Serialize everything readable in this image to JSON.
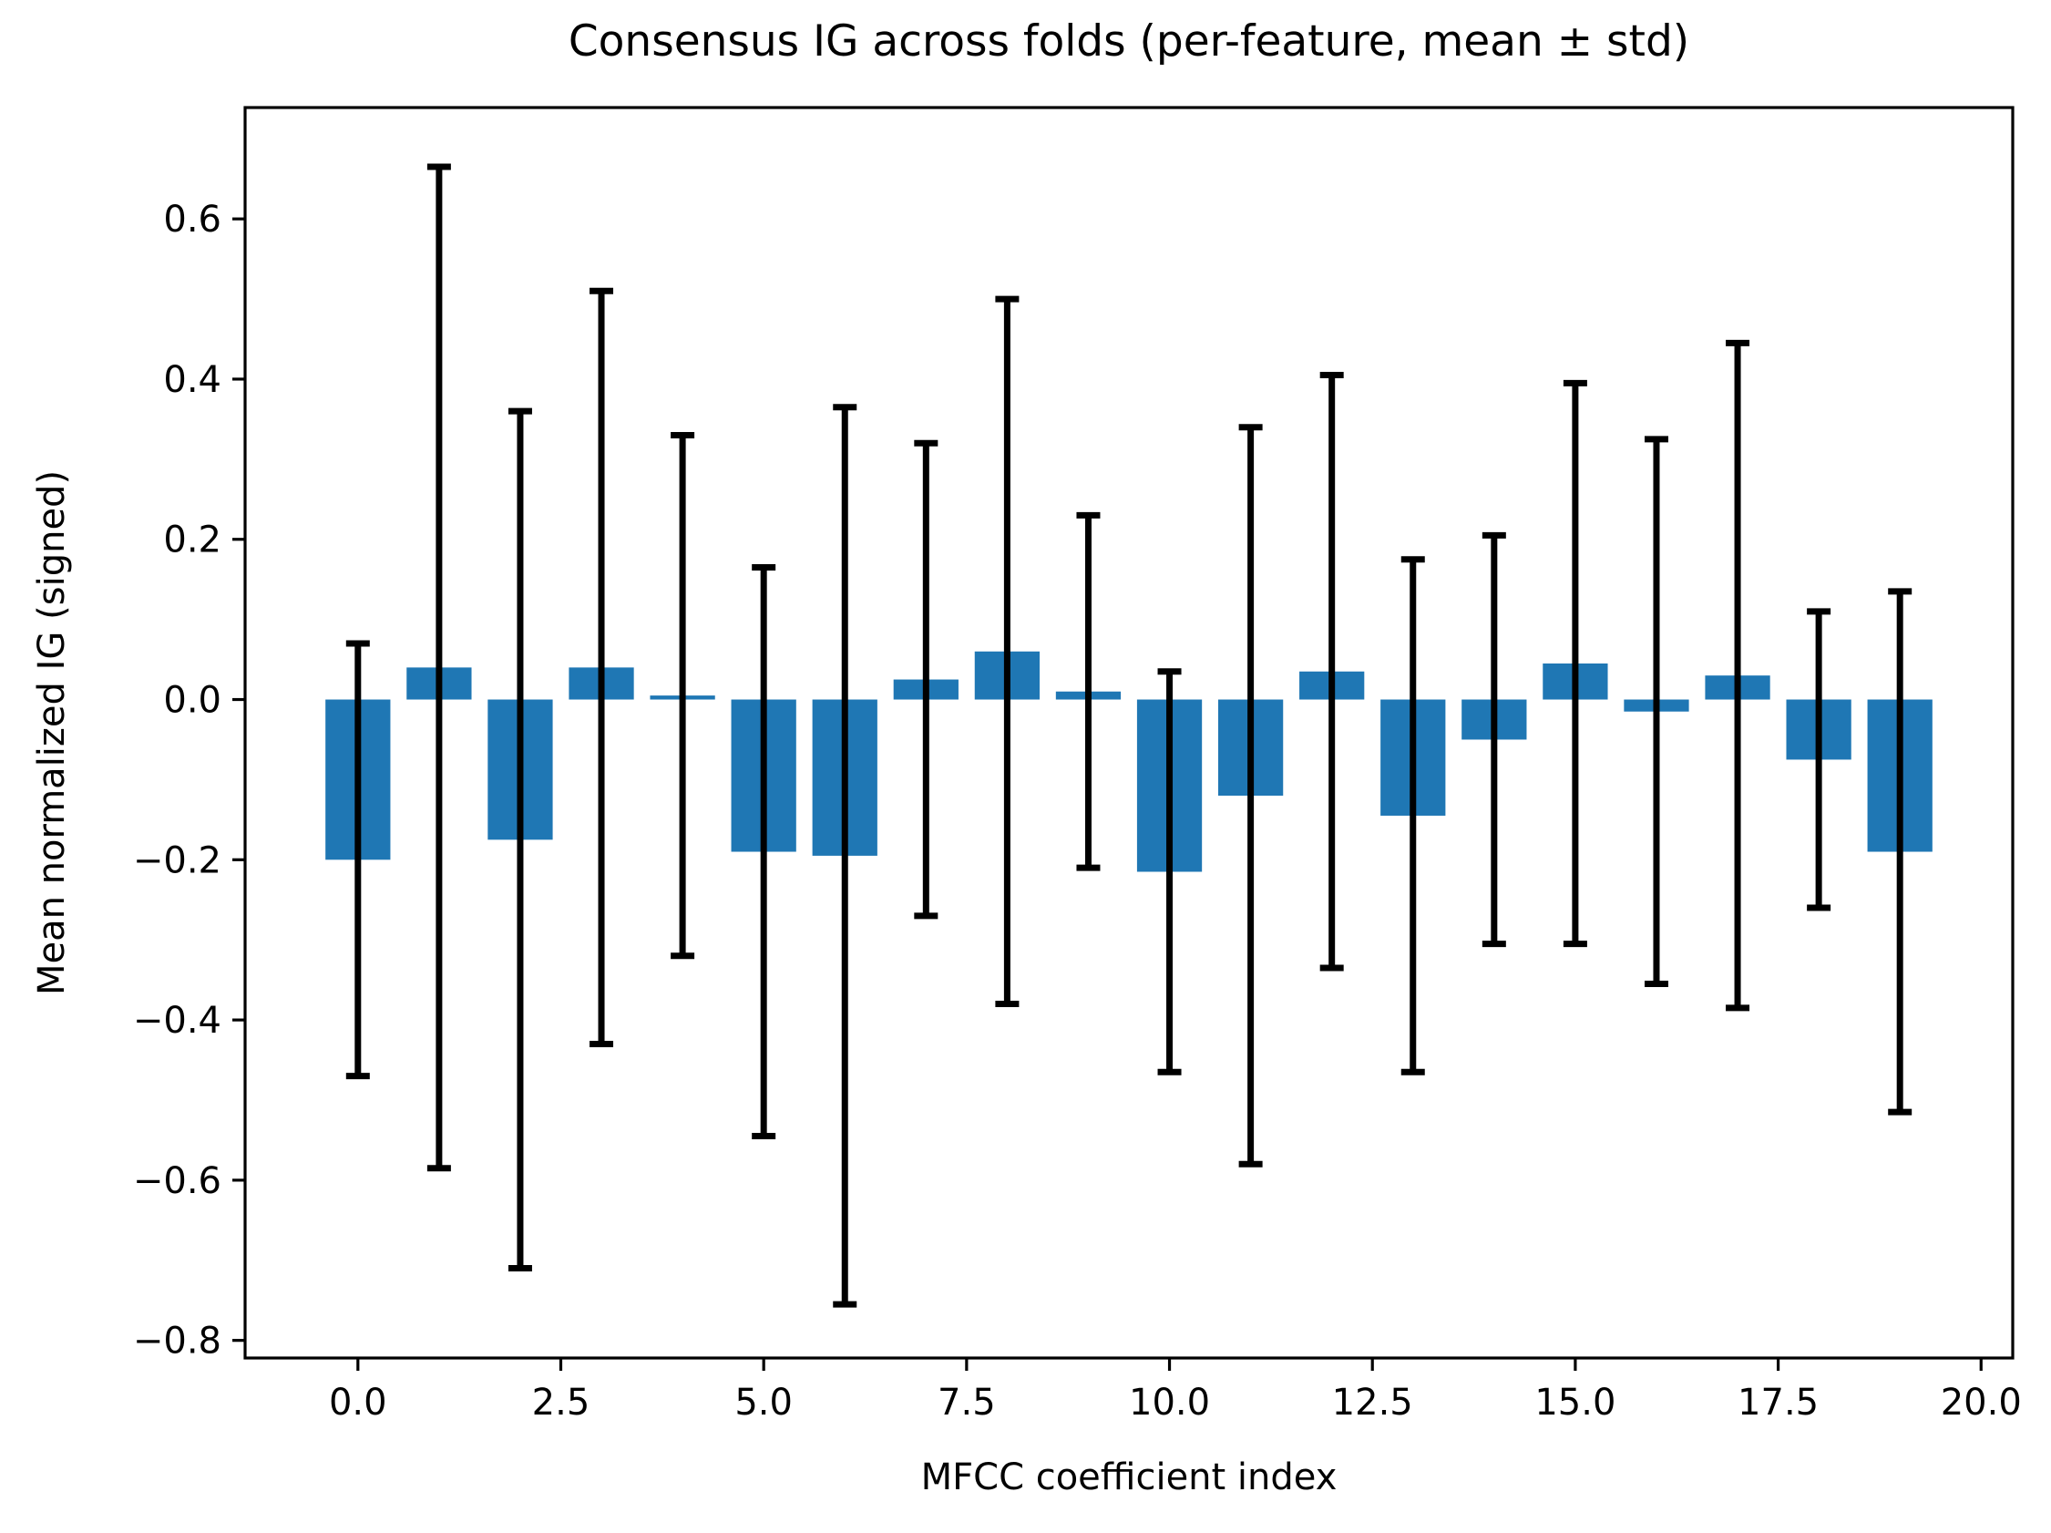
{
  "chart_data": {
    "type": "bar",
    "title": "Consensus IG across folds (per-feature, mean ± std)",
    "xlabel": "MFCC coefficient index",
    "ylabel": "Mean normalized IG (signed)",
    "categories": [
      0,
      1,
      2,
      3,
      4,
      5,
      6,
      7,
      8,
      9,
      10,
      11,
      12,
      13,
      14,
      15,
      16,
      17,
      18,
      19
    ],
    "series": [
      {
        "name": "mean",
        "values": [
          -0.2,
          0.04,
          -0.175,
          0.04,
          0.005,
          -0.19,
          -0.195,
          0.025,
          0.06,
          0.01,
          -0.215,
          -0.12,
          0.035,
          -0.145,
          -0.05,
          0.045,
          -0.015,
          0.03,
          -0.075,
          -0.19
        ]
      },
      {
        "name": "std",
        "values": [
          0.27,
          0.625,
          0.535,
          0.47,
          0.325,
          0.355,
          0.56,
          0.295,
          0.44,
          0.22,
          0.25,
          0.46,
          0.37,
          0.32,
          0.255,
          0.35,
          0.34,
          0.415,
          0.185,
          0.325
        ]
      }
    ],
    "error_bars": true,
    "bar_width": 0.8,
    "xlim": [
      -1.39,
      20.39
    ],
    "ylim": [
      -0.822,
      0.739
    ],
    "xticks": {
      "values": [
        0,
        2.5,
        5,
        7.5,
        10,
        12.5,
        15,
        17.5,
        20
      ],
      "labels": [
        "0.0",
        "2.5",
        "5.0",
        "7.5",
        "10.0",
        "12.5",
        "15.0",
        "17.5",
        "20.0"
      ]
    },
    "yticks": {
      "values": [
        0.6,
        0.4,
        0.2,
        0.0,
        -0.2,
        -0.4,
        -0.6,
        -0.8
      ],
      "labels": [
        "0.6",
        "0.4",
        "0.2",
        "0.0",
        "−0.2",
        "−0.4",
        "−0.6",
        "−0.8"
      ]
    },
    "grid": false,
    "legend": "none",
    "colors": {
      "bar": "#1f77b4",
      "error": "#000000",
      "axis": "#000000",
      "text": "#000000",
      "background": "#ffffff"
    }
  }
}
